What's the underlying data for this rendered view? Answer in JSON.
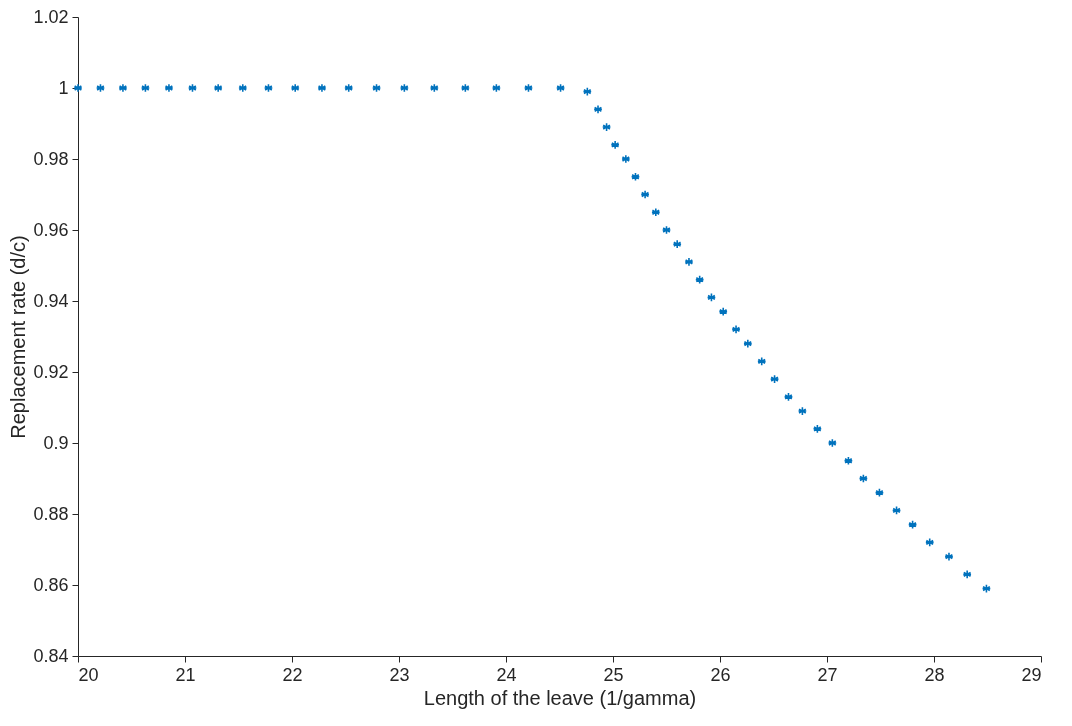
{
  "chart_data": {
    "type": "scatter",
    "xlabel": "Length of the leave (1/gamma)",
    "ylabel": "Replacement rate (d/c)",
    "x": [
      20.0,
      20.21,
      20.42,
      20.63,
      20.85,
      21.07,
      21.31,
      21.54,
      21.78,
      22.03,
      22.28,
      22.53,
      22.79,
      23.05,
      23.33,
      23.62,
      23.91,
      24.21,
      24.51,
      24.76,
      24.86,
      24.94,
      25.02,
      25.12,
      25.21,
      25.3,
      25.4,
      25.5,
      25.6,
      25.71,
      25.81,
      25.92,
      26.03,
      26.15,
      26.26,
      26.39,
      26.51,
      26.64,
      26.77,
      26.91,
      27.05,
      27.2,
      27.34,
      27.49,
      27.65,
      27.8,
      27.96,
      28.14,
      28.31,
      28.49
    ],
    "series": [
      {
        "color": "#0072bd",
        "values": [
          1.0,
          1.0,
          1.0,
          1.0,
          1.0,
          1.0,
          1.0,
          1.0,
          1.0,
          1.0,
          1.0,
          1.0,
          1.0,
          1.0,
          1.0,
          1.0,
          1.0,
          1.0,
          1.0,
          0.999,
          0.994,
          0.989,
          0.984,
          0.98,
          0.975,
          0.97,
          0.965,
          0.96,
          0.956,
          0.951,
          0.946,
          0.941,
          0.937,
          0.932,
          0.928,
          0.923,
          0.918,
          0.913,
          0.909,
          0.904,
          0.9,
          0.895,
          0.89,
          0.886,
          0.881,
          0.877,
          0.872,
          0.868,
          0.863,
          0.859
        ]
      }
    ],
    "xlim": [
      20,
      29
    ],
    "xticks": [
      20,
      21,
      22,
      23,
      24,
      25,
      26,
      27,
      28,
      29
    ],
    "ylim": [
      0.84,
      1.02
    ],
    "yticks": [
      0.84,
      0.86,
      0.88,
      0.9,
      0.92,
      0.94,
      0.96,
      0.98,
      {
        "value": 1,
        "label": "1"
      },
      1.02
    ],
    "marker": "cross",
    "grid": false
  }
}
